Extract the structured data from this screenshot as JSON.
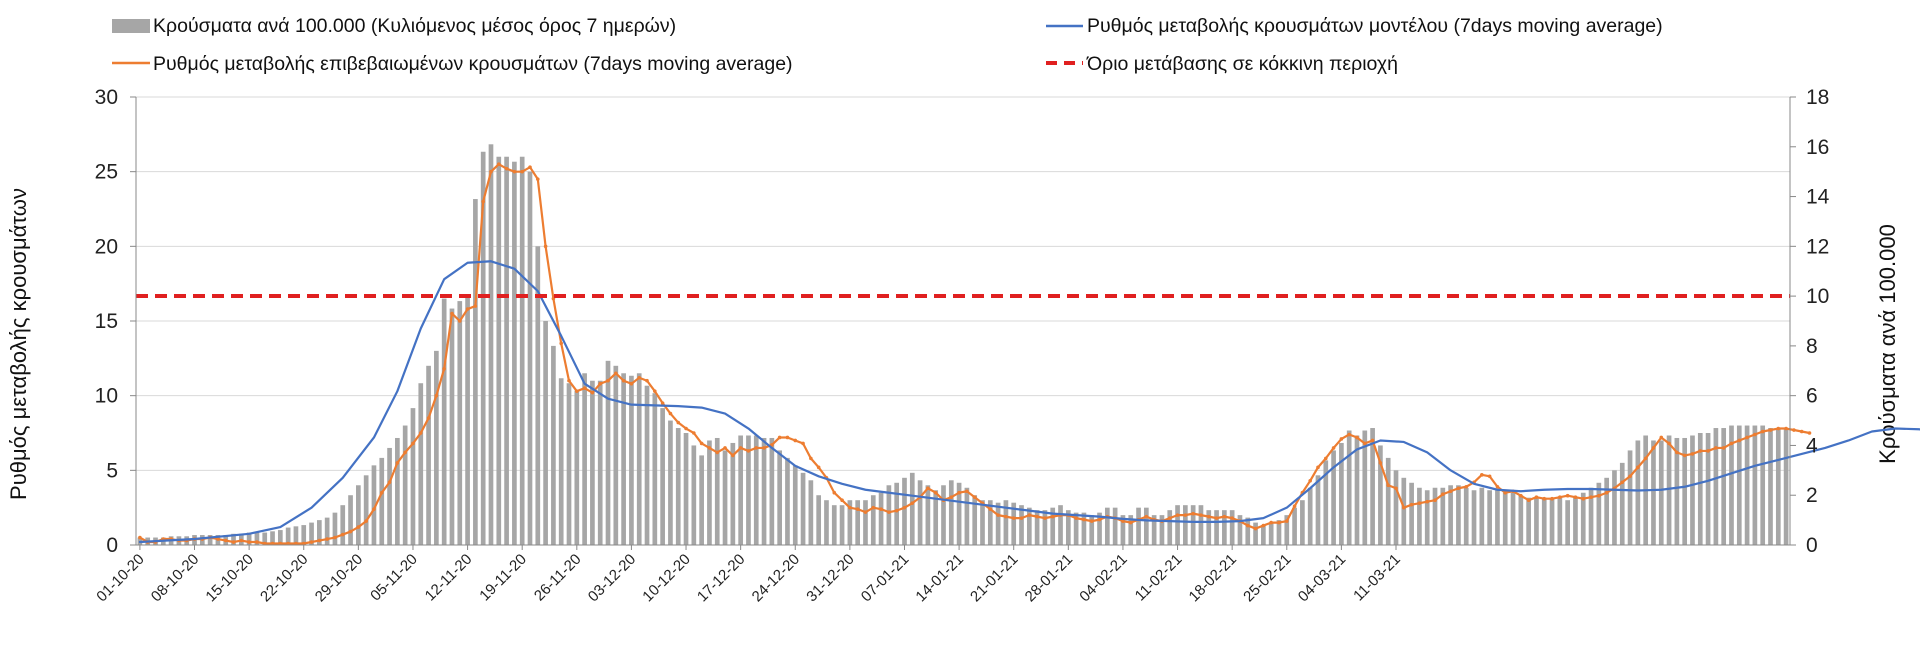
{
  "chart_data": {
    "type": "bar+line",
    "legend": {
      "bars": "Κρούσματα ανά 100.000 (Κυλιόμενος μέσος όρος 7 ημερών)",
      "model": "Ρυθμός μεταβολής κρουσμάτων μοντέλου (7days moving average)",
      "confirmed": "Ρυθμός μεταβολής επιβεβαιωμένων κρουσμάτων (7days moving average)",
      "threshold": "Όριο μετάβασης σε κόκκινη περιοχή"
    },
    "y_left": {
      "label": "Ρυθμός μεταβολής κρουσμάτων",
      "min": 0,
      "max": 30,
      "ticks": [
        "0",
        "5",
        "10",
        "15",
        "20",
        "25",
        "30"
      ]
    },
    "y_right": {
      "label": "Κρούσματα ανά 100.000",
      "min": 0,
      "max": 18,
      "ticks": [
        "0",
        "2",
        "4",
        "6",
        "8",
        "10",
        "12",
        "14",
        "16",
        "18"
      ]
    },
    "x_tick_labels": [
      "01-10-20",
      "08-10-20",
      "15-10-20",
      "22-10-20",
      "29-10-20",
      "05-11-20",
      "12-11-20",
      "19-11-20",
      "26-11-20",
      "03-12-20",
      "10-12-20",
      "17-12-20",
      "24-12-20",
      "31-12-20",
      "07-01-21",
      "14-01-21",
      "21-01-21",
      "28-01-21",
      "04-02-21",
      "11-02-21",
      "18-02-21",
      "25-02-21",
      "04-03-21",
      "11-03-21"
    ],
    "threshold_left_value": 16.67,
    "bar_values_right_axis": [
      0.3,
      0.3,
      0.3,
      0.3,
      0.35,
      0.35,
      0.35,
      0.4,
      0.4,
      0.4,
      0.4,
      0.4,
      0.45,
      0.45,
      0.5,
      0.5,
      0.5,
      0.55,
      0.6,
      0.7,
      0.75,
      0.8,
      0.9,
      1.0,
      1.1,
      1.3,
      1.6,
      2.0,
      2.4,
      2.8,
      3.2,
      3.5,
      3.9,
      4.3,
      4.8,
      5.5,
      6.5,
      7.2,
      7.8,
      9.9,
      9.5,
      9.8,
      10.0,
      13.9,
      15.8,
      16.1,
      15.6,
      15.6,
      15.4,
      15.6,
      15.0,
      12.0,
      9.0,
      8.0,
      6.7,
      6.5,
      6.2,
      6.9,
      6.6,
      6.6,
      7.4,
      7.2,
      6.9,
      6.8,
      6.9,
      6.4,
      6.1,
      5.5,
      5.0,
      4.7,
      4.5,
      4.0,
      3.6,
      4.2,
      4.3,
      3.8,
      4.1,
      4.4,
      4.4,
      4.4,
      4.3,
      4.3,
      3.8,
      3.5,
      3.2,
      2.9,
      2.6,
      2.0,
      1.8,
      1.6,
      1.6,
      1.8,
      1.8,
      1.8,
      2.0,
      2.1,
      2.4,
      2.5,
      2.7,
      2.9,
      2.6,
      2.4,
      2.2,
      2.4,
      2.6,
      2.5,
      2.3,
      2.0,
      1.8,
      1.8,
      1.7,
      1.8,
      1.7,
      1.6,
      1.5,
      1.4,
      1.4,
      1.5,
      1.6,
      1.4,
      1.3,
      1.3,
      1.2,
      1.3,
      1.5,
      1.5,
      1.2,
      1.2,
      1.5,
      1.5,
      1.2,
      1.2,
      1.4,
      1.6,
      1.6,
      1.6,
      1.6,
      1.4,
      1.4,
      1.4,
      1.4,
      1.2,
      1.1,
      0.9,
      0.8,
      0.9,
      1.0,
      1.2,
      1.5,
      1.8,
      2.3,
      2.8,
      3.4,
      3.8,
      4.1,
      4.6,
      4.4,
      4.6,
      4.7,
      4.0,
      3.5,
      3.0,
      2.7,
      2.5,
      2.3,
      2.2,
      2.3,
      2.3,
      2.4,
      2.4,
      2.3,
      2.2,
      2.3,
      2.2,
      2.2,
      2.1,
      2.1,
      2.0,
      1.9,
      1.9,
      1.9,
      1.9,
      1.9,
      1.8,
      1.9,
      2.1,
      2.3,
      2.5,
      2.7,
      3.0,
      3.3,
      3.8,
      4.2,
      4.4,
      4.2,
      4.2,
      4.4,
      4.3,
      4.3,
      4.4,
      4.5,
      4.5,
      4.7,
      4.7,
      4.8,
      4.8,
      4.8,
      4.8,
      4.8,
      4.7,
      4.7,
      4.7
    ],
    "model_points_left_axis": [
      [
        0,
        0.2
      ],
      [
        7,
        0.4
      ],
      [
        14,
        0.75
      ],
      [
        18,
        1.2
      ],
      [
        22,
        2.5
      ],
      [
        26,
        4.5
      ],
      [
        30,
        7.2
      ],
      [
        33,
        10.3
      ],
      [
        36,
        14.5
      ],
      [
        39,
        17.8
      ],
      [
        42,
        18.9
      ],
      [
        45,
        19.0
      ],
      [
        48,
        18.5
      ],
      [
        51,
        17.0
      ],
      [
        54,
        14.0
      ],
      [
        57,
        10.8
      ],
      [
        60,
        9.8
      ],
      [
        63,
        9.4
      ],
      [
        66,
        9.35
      ],
      [
        69,
        9.3
      ],
      [
        72,
        9.2
      ],
      [
        75,
        8.8
      ],
      [
        78,
        7.8
      ],
      [
        81,
        6.5
      ],
      [
        84,
        5.3
      ],
      [
        87,
        4.6
      ],
      [
        90,
        4.1
      ],
      [
        93,
        3.7
      ],
      [
        96,
        3.5
      ],
      [
        99,
        3.3
      ],
      [
        102,
        3.1
      ],
      [
        105,
        2.9
      ],
      [
        108,
        2.7
      ],
      [
        111,
        2.5
      ],
      [
        114,
        2.3
      ],
      [
        117,
        2.1
      ],
      [
        120,
        2.0
      ],
      [
        123,
        1.9
      ],
      [
        126,
        1.75
      ],
      [
        129,
        1.65
      ],
      [
        132,
        1.6
      ],
      [
        135,
        1.55
      ],
      [
        138,
        1.55
      ],
      [
        141,
        1.6
      ],
      [
        144,
        1.8
      ],
      [
        147,
        2.5
      ],
      [
        150,
        3.8
      ],
      [
        153,
        5.2
      ],
      [
        156,
        6.4
      ],
      [
        159,
        7.0
      ],
      [
        162,
        6.9
      ],
      [
        165,
        6.2
      ],
      [
        168,
        5.0
      ],
      [
        171,
        4.1
      ],
      [
        174,
        3.7
      ],
      [
        177,
        3.6
      ],
      [
        180,
        3.7
      ],
      [
        183,
        3.75
      ],
      [
        186,
        3.75
      ],
      [
        189,
        3.7
      ],
      [
        192,
        3.65
      ],
      [
        195,
        3.7
      ],
      [
        198,
        3.9
      ],
      [
        201,
        4.3
      ],
      [
        204,
        4.8
      ],
      [
        207,
        5.3
      ],
      [
        210,
        5.7
      ],
      [
        213,
        6.1
      ],
      [
        216,
        6.5
      ],
      [
        219,
        7.0
      ],
      [
        222,
        7.6
      ],
      [
        225,
        7.8
      ],
      [
        228,
        7.75
      ],
      [
        231,
        7.6
      ],
      [
        233,
        7.4
      ]
    ],
    "confirmed_left_axis": [
      0.5,
      0.2,
      0.2,
      0.4,
      0.4,
      0.3,
      0.3,
      0.4,
      0.4,
      0.5,
      0.4,
      0.3,
      0.2,
      0.3,
      0.2,
      0.2,
      0.1,
      0.1,
      0.1,
      0.1,
      0.1,
      0.1,
      0.2,
      0.3,
      0.4,
      0.5,
      0.7,
      0.9,
      1.2,
      1.6,
      2.4,
      3.5,
      4.2,
      5.5,
      6.2,
      6.8,
      7.5,
      8.5,
      10.0,
      11.8,
      15.5,
      15.0,
      15.8,
      16.0,
      23.0,
      25.0,
      25.5,
      25.2,
      25.0,
      25.0,
      25.3,
      24.5,
      20.0,
      16.5,
      13.5,
      11.0,
      10.3,
      10.5,
      10.2,
      10.8,
      11.0,
      11.5,
      11.0,
      10.8,
      11.2,
      11.0,
      10.3,
      9.5,
      8.8,
      8.2,
      7.8,
      7.5,
      6.8,
      6.5,
      6.2,
      6.5,
      6.0,
      6.5,
      6.3,
      6.5,
      6.5,
      6.7,
      7.2,
      7.2,
      7.0,
      6.8,
      5.8,
      5.2,
      4.5,
      3.5,
      3.0,
      2.5,
      2.4,
      2.2,
      2.5,
      2.4,
      2.2,
      2.3,
      2.5,
      2.8,
      3.2,
      3.8,
      3.5,
      3.0,
      3.2,
      3.5,
      3.6,
      3.2,
      2.8,
      2.4,
      2.0,
      1.9,
      1.8,
      1.8,
      2.0,
      1.9,
      1.8,
      1.9,
      2.0,
      2.0,
      1.8,
      1.7,
      1.6,
      1.7,
      1.9,
      1.8,
      1.6,
      1.5,
      1.7,
      1.9,
      1.7,
      1.6,
      1.8,
      2.0,
      2.0,
      2.1,
      2.0,
      1.9,
      1.8,
      1.9,
      1.8,
      1.6,
      1.3,
      1.1,
      1.3,
      1.5,
      1.5,
      1.6,
      2.6,
      3.5,
      4.3,
      5.2,
      5.8,
      6.5,
      7.1,
      7.4,
      7.2,
      6.8,
      7.0,
      5.5,
      4.0,
      3.8,
      2.5,
      2.7,
      2.8,
      2.9,
      3.0,
      3.4,
      3.6,
      3.8,
      3.9,
      4.2,
      4.7,
      4.6,
      3.9,
      3.5,
      3.6,
      3.3,
      3.0,
      3.2,
      3.1,
      3.1,
      3.2,
      3.3,
      3.2,
      3.1,
      3.2,
      3.3,
      3.5,
      3.8,
      4.2,
      4.6,
      5.2,
      5.8,
      6.5,
      7.2,
      6.8,
      6.2,
      6.0,
      6.1,
      6.3,
      6.3,
      6.5,
      6.5,
      6.8,
      7.0,
      7.2,
      7.4,
      7.6,
      7.7,
      7.8,
      7.8,
      7.7,
      7.6,
      7.5
    ]
  }
}
